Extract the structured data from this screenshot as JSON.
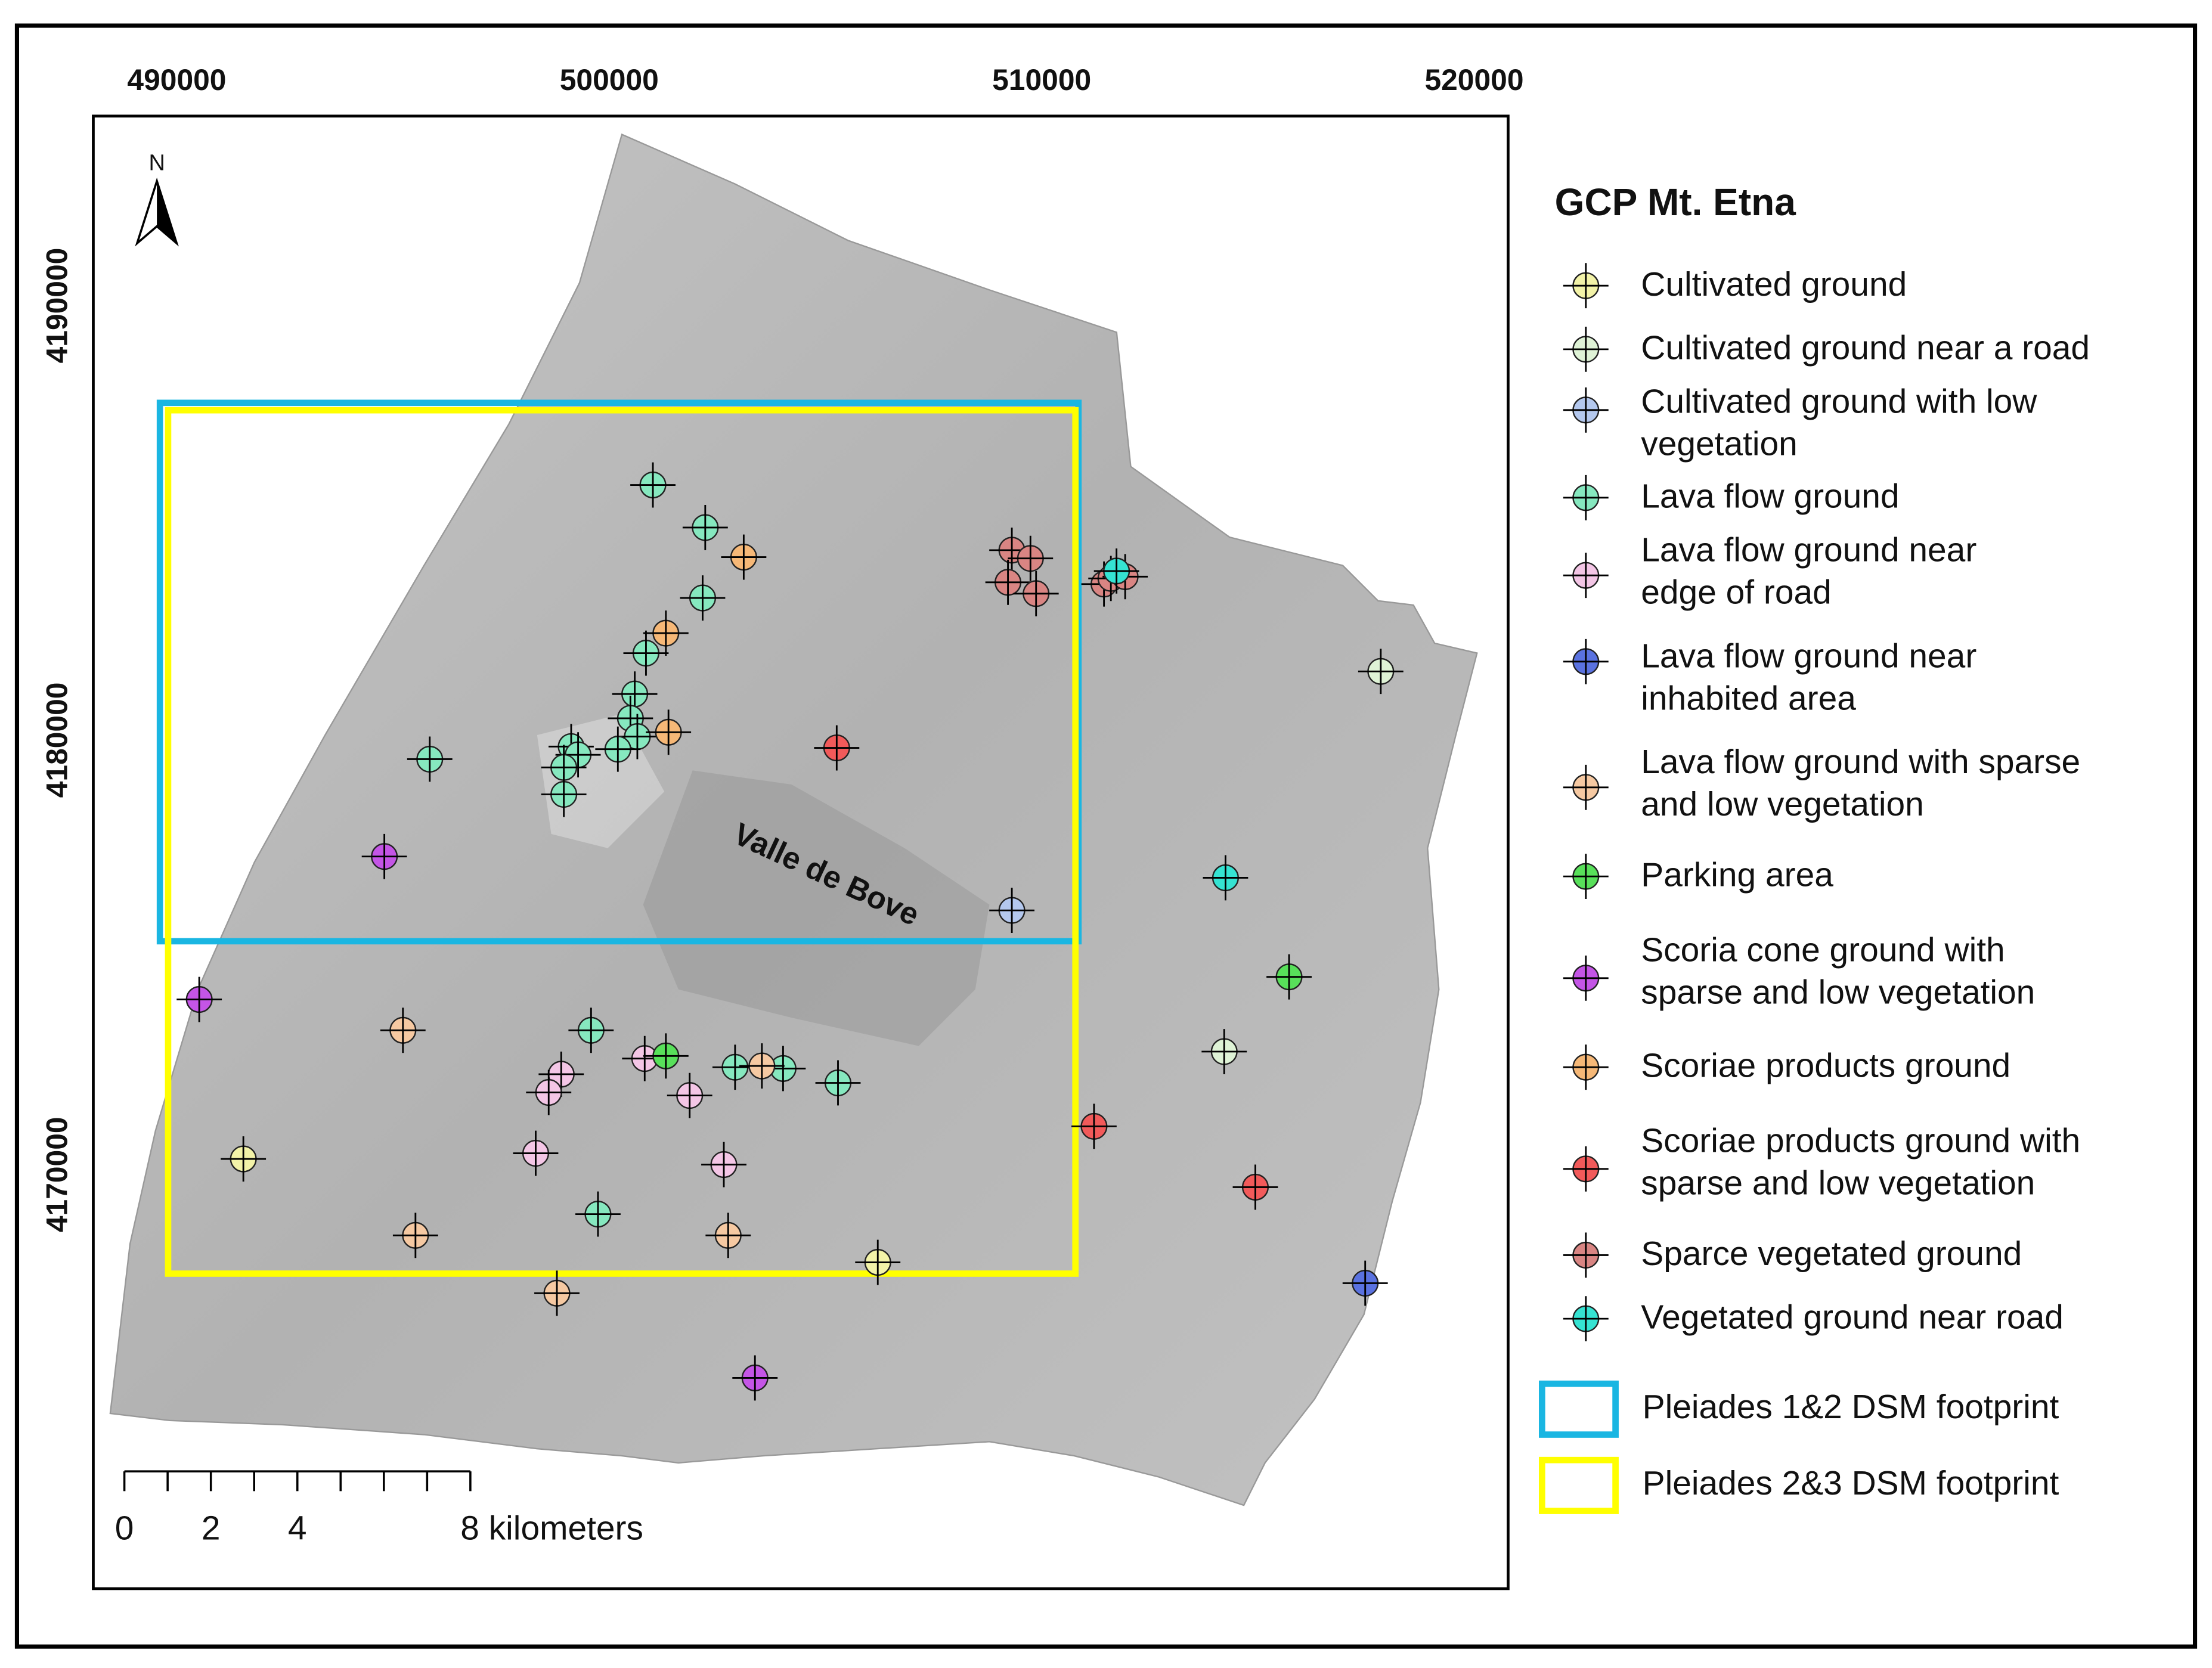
{
  "map": {
    "title": "GCP Mt. Etna",
    "xlim": [
      488070,
      520785
    ],
    "ylim": [
      4160470,
      4194360
    ],
    "xticks": [
      490000,
      500000,
      510000,
      520000
    ],
    "yticks": [
      4170000,
      4180000,
      4190000
    ],
    "north_label": "N",
    "place_label": "Valle de Bove",
    "series": [
      {
        "name": "Cultivated ground",
        "color": "#f3f3a8",
        "points": [
          {
            "x": 491540,
            "y": 4170360
          },
          {
            "x": 506210,
            "y": 4167980
          }
        ]
      },
      {
        "name": "Cultivated ground near a road",
        "color": "#dff3d6",
        "points": [
          {
            "x": 517840,
            "y": 4181580
          },
          {
            "x": 514220,
            "y": 4172830
          }
        ]
      },
      {
        "name": "Cultivated ground with low\nvegetation",
        "color": "#b4c8ee",
        "points": [
          {
            "x": 509310,
            "y": 4176080
          }
        ]
      },
      {
        "name": "Lava flow ground",
        "color": "#86e8bf",
        "points": [
          {
            "x": 501010,
            "y": 4185870
          },
          {
            "x": 502220,
            "y": 4184890
          },
          {
            "x": 502160,
            "y": 4183270
          },
          {
            "x": 500850,
            "y": 4182000
          },
          {
            "x": 500590,
            "y": 4181060
          },
          {
            "x": 500490,
            "y": 4180500
          },
          {
            "x": 500650,
            "y": 4180080
          },
          {
            "x": 500200,
            "y": 4179790
          },
          {
            "x": 499120,
            "y": 4179850
          },
          {
            "x": 499280,
            "y": 4179660
          },
          {
            "x": 498950,
            "y": 4179370
          },
          {
            "x": 498950,
            "y": 4178750
          },
          {
            "x": 495850,
            "y": 4179560
          },
          {
            "x": 499580,
            "y": 4173320
          },
          {
            "x": 502910,
            "y": 4172470
          },
          {
            "x": 504020,
            "y": 4172440
          },
          {
            "x": 505290,
            "y": 4172110
          },
          {
            "x": 499740,
            "y": 4169090
          }
        ]
      },
      {
        "name": "Lava flow ground near\nedge of road",
        "color": "#f4c6e6",
        "points": [
          {
            "x": 500820,
            "y": 4172670
          },
          {
            "x": 498890,
            "y": 4172310
          },
          {
            "x": 498600,
            "y": 4171890
          },
          {
            "x": 501860,
            "y": 4171820
          },
          {
            "x": 498300,
            "y": 4170490
          },
          {
            "x": 502650,
            "y": 4170230
          }
        ]
      },
      {
        "name": "Lava flow ground near\ninhabited area",
        "color": "#5a72e0",
        "points": [
          {
            "x": 517480,
            "y": 4167500
          }
        ]
      },
      {
        "name": "Lava flow ground with sparse\nand low vegetation",
        "color": "#f6c9a2",
        "points": [
          {
            "x": 495230,
            "y": 4173320
          },
          {
            "x": 495520,
            "y": 4168600
          },
          {
            "x": 498790,
            "y": 4167270
          },
          {
            "x": 502750,
            "y": 4168600
          },
          {
            "x": 503530,
            "y": 4172500
          }
        ]
      },
      {
        "name": "Parking area",
        "color": "#58e05a",
        "points": [
          {
            "x": 501310,
            "y": 4172730
          },
          {
            "x": 515720,
            "y": 4174550
          }
        ]
      },
      {
        "name": "Scoria cone ground with\nsparse and low vegetation",
        "color": "#c455e6",
        "points": [
          {
            "x": 490520,
            "y": 4174030
          },
          {
            "x": 494800,
            "y": 4177320
          },
          {
            "x": 503370,
            "y": 4165320
          }
        ]
      },
      {
        "name": "Scoriae products ground",
        "color": "#f6b877",
        "points": [
          {
            "x": 503110,
            "y": 4184210
          },
          {
            "x": 501310,
            "y": 4182460
          },
          {
            "x": 501370,
            "y": 4180180
          }
        ]
      },
      {
        "name": "Scoriae products ground with\nsparse and low vegetation",
        "color": "#f25a5a",
        "points": [
          {
            "x": 505260,
            "y": 4179820
          },
          {
            "x": 511210,
            "y": 4171110
          },
          {
            "x": 514940,
            "y": 4169710
          }
        ]
      },
      {
        "name": "Sparce vegetated ground",
        "color": "#d98583",
        "points": [
          {
            "x": 509310,
            "y": 4184370
          },
          {
            "x": 509740,
            "y": 4184180
          },
          {
            "x": 509220,
            "y": 4183630
          },
          {
            "x": 509870,
            "y": 4183370
          },
          {
            "x": 511440,
            "y": 4183590
          },
          {
            "x": 511600,
            "y": 4183720
          },
          {
            "x": 511930,
            "y": 4183760
          }
        ]
      },
      {
        "name": "Vegetated ground near road",
        "color": "#35e3d2",
        "points": [
          {
            "x": 511730,
            "y": 4183890
          },
          {
            "x": 514250,
            "y": 4176830
          }
        ]
      }
    ],
    "footprints": [
      {
        "name": "Pleiades 1&2 DSM footprint",
        "color": "#1ab6e2",
        "x": [
          489610,
          510850
        ],
        "y": [
          4175370,
          4187760
        ]
      },
      {
        "name": "Pleiades 2&3 DSM footprint",
        "color": "#ffff00",
        "x": [
          489800,
          510780
        ],
        "y": [
          4167720,
          4187590
        ]
      }
    ],
    "scale_bar": {
      "ticks": [
        0,
        1,
        2,
        3,
        4,
        5,
        6,
        7,
        8
      ],
      "labels": [
        0,
        2,
        4,
        {
          "value": 8,
          "label": "8 kilometers"
        }
      ]
    }
  }
}
